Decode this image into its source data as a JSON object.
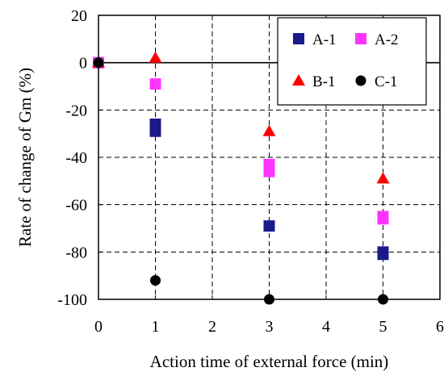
{
  "chart_data": {
    "type": "scatter",
    "xlabel": "Action time of external force (min)",
    "ylabel": "Rate of change of Gm (%)",
    "xlim": [
      0,
      6
    ],
    "ylim": [
      -100,
      20
    ],
    "x_ticks": [
      "0",
      "1",
      "2",
      "3",
      "4",
      "5",
      "6"
    ],
    "y_ticks": [
      "20",
      "0",
      "-20",
      "-40",
      "-60",
      "-80",
      "-100"
    ],
    "grid": true,
    "legend_position": "top-right",
    "series": [
      {
        "name": "A-1",
        "marker": "square",
        "color": "#1a1a8c",
        "points": [
          {
            "x": 0,
            "y": 0
          },
          {
            "x": 1,
            "y": -26
          },
          {
            "x": 1,
            "y": -29
          },
          {
            "x": 3,
            "y": -69
          },
          {
            "x": 5,
            "y": -80
          },
          {
            "x": 5,
            "y": -81
          }
        ]
      },
      {
        "name": "A-2",
        "marker": "square",
        "color": "#ff33ff",
        "points": [
          {
            "x": 0,
            "y": 0
          },
          {
            "x": 1,
            "y": -9
          },
          {
            "x": 3,
            "y": -43
          },
          {
            "x": 3,
            "y": -46
          },
          {
            "x": 5,
            "y": -65
          },
          {
            "x": 5,
            "y": -66
          }
        ]
      },
      {
        "name": "B-1",
        "marker": "triangle",
        "color": "#ff0000",
        "points": [
          {
            "x": 0,
            "y": 0
          },
          {
            "x": 1,
            "y": 2
          },
          {
            "x": 3,
            "y": -29
          },
          {
            "x": 5,
            "y": -49
          }
        ]
      },
      {
        "name": "C-1",
        "marker": "circle",
        "color": "#000000",
        "points": [
          {
            "x": 0,
            "y": 0
          },
          {
            "x": 1,
            "y": -92
          },
          {
            "x": 3,
            "y": -100
          },
          {
            "x": 5,
            "y": -100
          }
        ]
      }
    ]
  }
}
